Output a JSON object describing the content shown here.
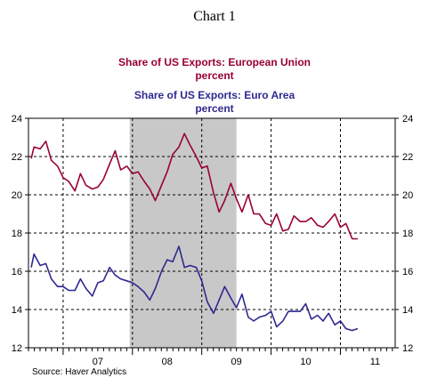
{
  "title": "Chart 1",
  "source": "Source: Haver Analytics",
  "legend": [
    {
      "label": "Share of US Exports: European Union",
      "unit": "percent",
      "color": "#990033"
    },
    {
      "label": "Share of US Exports:  Euro Area",
      "unit": "percent",
      "color": "#2e2890"
    }
  ],
  "chart_data": {
    "type": "line",
    "title": "Chart 1",
    "xlabel": "",
    "ylabel": "",
    "x_tick_labels": [
      "07",
      "08",
      "09",
      "10",
      "11"
    ],
    "x_range": [
      2006.5,
      2011.79
    ],
    "y_ticks": [
      "12",
      "14",
      "16",
      "18",
      "20",
      "22",
      "24"
    ],
    "ylim": [
      12,
      24
    ],
    "grid": "horizontal dashed at each y tick; vertical dashed at year boundaries",
    "shading": {
      "from": 2007.96,
      "to": 2009.5,
      "label": "recession",
      "color": "#c8c8c8"
    },
    "dual_axis": true,
    "series": [
      {
        "name": "Share of US Exports: European Union",
        "color": "#990033",
        "values": [
          [
            2006.54,
            21.9
          ],
          [
            2006.58,
            22.5
          ],
          [
            2006.67,
            22.4
          ],
          [
            2006.75,
            22.8
          ],
          [
            2006.83,
            21.8
          ],
          [
            2006.92,
            21.5
          ],
          [
            2007.0,
            20.9
          ],
          [
            2007.08,
            20.7
          ],
          [
            2007.17,
            20.2
          ],
          [
            2007.25,
            21.1
          ],
          [
            2007.33,
            20.5
          ],
          [
            2007.42,
            20.3
          ],
          [
            2007.5,
            20.4
          ],
          [
            2007.58,
            20.8
          ],
          [
            2007.67,
            21.6
          ],
          [
            2007.75,
            22.3
          ],
          [
            2007.83,
            21.3
          ],
          [
            2007.92,
            21.5
          ],
          [
            2008.0,
            21.1
          ],
          [
            2008.08,
            21.2
          ],
          [
            2008.17,
            20.7
          ],
          [
            2008.25,
            20.3
          ],
          [
            2008.33,
            19.7
          ],
          [
            2008.42,
            20.5
          ],
          [
            2008.5,
            21.2
          ],
          [
            2008.58,
            22.1
          ],
          [
            2008.67,
            22.5
          ],
          [
            2008.75,
            23.2
          ],
          [
            2008.83,
            22.6
          ],
          [
            2008.92,
            22.0
          ],
          [
            2009.0,
            21.4
          ],
          [
            2009.08,
            21.5
          ],
          [
            2009.17,
            20.1
          ],
          [
            2009.25,
            19.1
          ],
          [
            2009.33,
            19.7
          ],
          [
            2009.42,
            20.6
          ],
          [
            2009.5,
            19.8
          ],
          [
            2009.58,
            19.1
          ],
          [
            2009.67,
            20.0
          ],
          [
            2009.75,
            19.0
          ],
          [
            2009.83,
            19.0
          ],
          [
            2009.92,
            18.5
          ],
          [
            2010.0,
            18.4
          ],
          [
            2010.08,
            19.0
          ],
          [
            2010.17,
            18.1
          ],
          [
            2010.25,
            18.2
          ],
          [
            2010.33,
            18.9
          ],
          [
            2010.42,
            18.6
          ],
          [
            2010.5,
            18.6
          ],
          [
            2010.58,
            18.8
          ],
          [
            2010.67,
            18.4
          ],
          [
            2010.75,
            18.3
          ],
          [
            2010.83,
            18.6
          ],
          [
            2010.92,
            19.0
          ],
          [
            2011.0,
            18.3
          ],
          [
            2011.08,
            18.5
          ],
          [
            2011.17,
            17.7
          ],
          [
            2011.25,
            17.7
          ]
        ]
      },
      {
        "name": "Share of US Exports:  Euro Area",
        "color": "#2e2890",
        "values": [
          [
            2006.54,
            16.2
          ],
          [
            2006.58,
            16.9
          ],
          [
            2006.67,
            16.3
          ],
          [
            2006.75,
            16.4
          ],
          [
            2006.83,
            15.6
          ],
          [
            2006.92,
            15.2
          ],
          [
            2007.0,
            15.2
          ],
          [
            2007.08,
            15.0
          ],
          [
            2007.17,
            15.0
          ],
          [
            2007.25,
            15.6
          ],
          [
            2007.33,
            15.1
          ],
          [
            2007.42,
            14.7
          ],
          [
            2007.5,
            15.4
          ],
          [
            2007.58,
            15.5
          ],
          [
            2007.67,
            16.2
          ],
          [
            2007.75,
            15.8
          ],
          [
            2007.83,
            15.6
          ],
          [
            2007.92,
            15.5
          ],
          [
            2008.0,
            15.4
          ],
          [
            2008.08,
            15.2
          ],
          [
            2008.17,
            14.9
          ],
          [
            2008.25,
            14.5
          ],
          [
            2008.33,
            15.1
          ],
          [
            2008.42,
            16.0
          ],
          [
            2008.5,
            16.6
          ],
          [
            2008.58,
            16.5
          ],
          [
            2008.67,
            17.3
          ],
          [
            2008.75,
            16.2
          ],
          [
            2008.83,
            16.3
          ],
          [
            2008.92,
            16.2
          ],
          [
            2009.0,
            15.5
          ],
          [
            2009.08,
            14.4
          ],
          [
            2009.17,
            13.8
          ],
          [
            2009.25,
            14.5
          ],
          [
            2009.33,
            15.2
          ],
          [
            2009.42,
            14.6
          ],
          [
            2009.5,
            14.1
          ],
          [
            2009.58,
            14.8
          ],
          [
            2009.67,
            13.6
          ],
          [
            2009.75,
            13.4
          ],
          [
            2009.83,
            13.6
          ],
          [
            2009.92,
            13.7
          ],
          [
            2010.0,
            13.9
          ],
          [
            2010.08,
            13.1
          ],
          [
            2010.17,
            13.4
          ],
          [
            2010.25,
            13.9
          ],
          [
            2010.33,
            13.9
          ],
          [
            2010.42,
            13.9
          ],
          [
            2010.5,
            14.3
          ],
          [
            2010.58,
            13.5
          ],
          [
            2010.67,
            13.7
          ],
          [
            2010.75,
            13.4
          ],
          [
            2010.83,
            13.8
          ],
          [
            2010.92,
            13.2
          ],
          [
            2011.0,
            13.4
          ],
          [
            2011.08,
            13.0
          ],
          [
            2011.17,
            12.9
          ],
          [
            2011.25,
            13.0
          ]
        ]
      }
    ]
  }
}
